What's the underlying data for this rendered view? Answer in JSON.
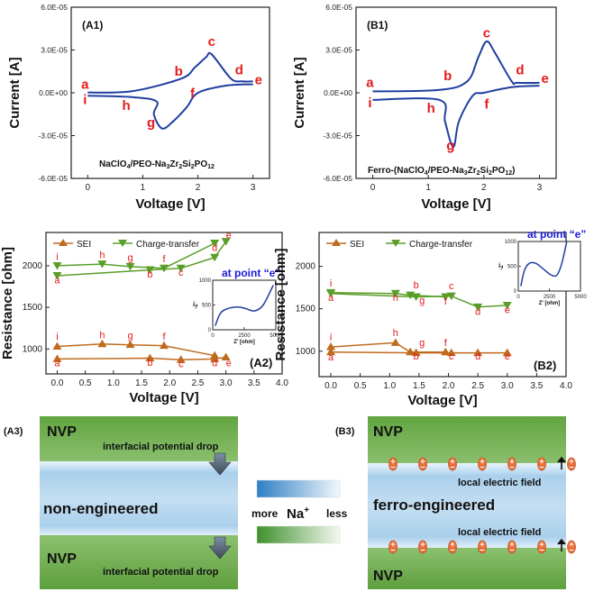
{
  "chart_data": [
    {
      "id": "A1",
      "type": "line",
      "panel_label": "(A1)",
      "inset_label": "NaClO",
      "xlabel": "Voltage [V]",
      "ylabel": "Current [A]",
      "xlim": [
        -0.3,
        3.3
      ],
      "ylim": [
        -6e-05,
        6e-05
      ],
      "xticks": [
        "0",
        "1",
        "2",
        "3"
      ],
      "yticks": [
        "6.0E-05",
        "3.0E-05",
        "0.0E+00",
        "-3.0E-05",
        "-6.0E-05"
      ],
      "forward_scan": {
        "x": [
          0.0,
          0.8,
          1.7,
          1.95,
          2.15,
          2.25,
          2.6,
          2.8,
          3.0
        ],
        "y": [
          2e-07,
          1.1e-06,
          1e-05,
          1.8e-05,
          2.5e-05,
          2.7e-05,
          1e-05,
          8e-06,
          8e-06
        ]
      },
      "reverse_scan": {
        "x": [
          3.0,
          2.5,
          2.0,
          1.8,
          1.55,
          1.35,
          1.2,
          1.25,
          0.8,
          0.0
        ],
        "y": [
          6e-06,
          5e-06,
          0.0,
          -1e-05,
          -2e-05,
          -2.5e-05,
          -1.5e-05,
          -6e-06,
          -3e-06,
          -2e-06
        ]
      },
      "point_labels": [
        {
          "text": "a",
          "x": -0.05,
          "y": 3e-06
        },
        {
          "text": "b",
          "x": 1.65,
          "y": 1.2e-05
        },
        {
          "text": "c",
          "x": 2.25,
          "y": 3.3e-05
        },
        {
          "text": "d",
          "x": 2.75,
          "y": 1.3e-05
        },
        {
          "text": "e",
          "x": 3.1,
          "y": 6e-06
        },
        {
          "text": "f",
          "x": 1.9,
          "y": -3.5e-06
        },
        {
          "text": "g",
          "x": 1.15,
          "y": -2.4e-05
        },
        {
          "text": "h",
          "x": 0.7,
          "y": -1.2e-05
        },
        {
          "text": "i",
          "x": -0.05,
          "y": -8e-06
        }
      ]
    },
    {
      "id": "B1",
      "type": "line",
      "panel_label": "(B1)",
      "inset_label": "Ferro-(NaClO",
      "xlabel": "Voltage [V]",
      "ylabel": "Current [A]",
      "xlim": [
        -0.3,
        3.3
      ],
      "ylim": [
        -6e-05,
        6e-05
      ],
      "xticks": [
        "0",
        "1",
        "2",
        "3"
      ],
      "yticks": [
        "6.0E-05",
        "3.0E-05",
        "0.0E+00",
        "-3.0E-05",
        "-6.0E-05"
      ],
      "forward_scan": {
        "x": [
          0.0,
          1.2,
          1.7,
          1.9,
          2.05,
          2.2,
          2.5,
          2.6,
          3.0
        ],
        "y": [
          1e-06,
          2e-06,
          8e-06,
          2.5e-05,
          3.6e-05,
          2.8e-05,
          8e-06,
          7e-06,
          7e-06
        ]
      },
      "reverse_scan": {
        "x": [
          3.0,
          2.5,
          2.0,
          1.8,
          1.55,
          1.45,
          1.3,
          1.2,
          0.0
        ],
        "y": [
          5e-06,
          4e-06,
          0.0,
          -2e-06,
          -2e-05,
          -3.8e-05,
          -2e-05,
          -5e-06,
          -5e-06
        ]
      },
      "point_labels": [
        {
          "text": "a",
          "x": -0.05,
          "y": 4e-06
        },
        {
          "text": "b",
          "x": 1.35,
          "y": 9e-06
        },
        {
          "text": "c",
          "x": 2.05,
          "y": 3.9e-05
        },
        {
          "text": "d",
          "x": 2.65,
          "y": 1.3e-05
        },
        {
          "text": "e",
          "x": 3.1,
          "y": 7e-06
        },
        {
          "text": "f",
          "x": 2.05,
          "y": -1.1e-05
        },
        {
          "text": "g",
          "x": 1.4,
          "y": -4e-05
        },
        {
          "text": "h",
          "x": 1.05,
          "y": -1.4e-05
        },
        {
          "text": "i",
          "x": -0.05,
          "y": -1e-05
        }
      ]
    },
    {
      "id": "A2",
      "type": "line",
      "panel_label": "(A2)",
      "xlabel": "Voltage [V]",
      "ylabel": "Resistance [ohm]",
      "xlim": [
        -0.2,
        4.0
      ],
      "ylim": [
        700,
        2400
      ],
      "xticks": [
        "0.0",
        "0.5",
        "1.0",
        "1.5",
        "2.0",
        "2.5",
        "3.0",
        "3.5",
        "4.0"
      ],
      "yticks": [
        "1000",
        "1500",
        "2000"
      ],
      "legend": [
        "SEI",
        "Charge-transfer"
      ],
      "series": [
        {
          "name": "SEI (charge)",
          "x": [
            0.0,
            1.65,
            2.2,
            2.8,
            3.0
          ],
          "y": [
            880,
            890,
            870,
            880,
            900
          ]
        },
        {
          "name": "SEI (discharge)",
          "x": [
            0.0,
            0.8,
            1.3,
            1.9,
            2.8
          ],
          "y": [
            1030,
            1060,
            1050,
            1040,
            920
          ]
        },
        {
          "name": "Charge-transfer (charge)",
          "x": [
            0.0,
            1.65,
            2.2,
            2.8,
            3.0
          ],
          "y": [
            1880,
            1950,
            1970,
            2100,
            2290
          ]
        },
        {
          "name": "Charge-transfer (discharge)",
          "x": [
            0.0,
            0.8,
            1.3,
            1.9,
            2.8
          ],
          "y": [
            2000,
            2020,
            1990,
            1970,
            2270
          ]
        }
      ],
      "point_labels": [
        {
          "text": "i",
          "x": 0.0,
          "y": 2070
        },
        {
          "text": "a",
          "x": 0.0,
          "y": 1790
        },
        {
          "text": "h",
          "x": 0.8,
          "y": 2090
        },
        {
          "text": "g",
          "x": 1.3,
          "y": 2060
        },
        {
          "text": "b",
          "x": 1.65,
          "y": 1860
        },
        {
          "text": "f",
          "x": 1.9,
          "y": 2040
        },
        {
          "text": "c",
          "x": 2.2,
          "y": 1880
        },
        {
          "text": "d",
          "x": 2.8,
          "y": 2180
        },
        {
          "text": "e",
          "x": 3.05,
          "y": 2330
        },
        {
          "text": "i",
          "x": 0.0,
          "y": 1110
        },
        {
          "text": "a",
          "x": 0.0,
          "y": 790
        },
        {
          "text": "h",
          "x": 0.8,
          "y": 1130
        },
        {
          "text": "g",
          "x": 1.3,
          "y": 1120
        },
        {
          "text": "b",
          "x": 1.65,
          "y": 800
        },
        {
          "text": "f",
          "x": 1.9,
          "y": 1110
        },
        {
          "text": "c",
          "x": 2.2,
          "y": 780
        },
        {
          "text": "d",
          "x": 2.8,
          "y": 790
        },
        {
          "text": "e",
          "x": 3.05,
          "y": 790
        }
      ],
      "inset": {
        "title": "at point “e”",
        "xlabel": "Z' [ohm]",
        "ylabel": "-Z''",
        "xticks": [
          "0",
          "2500",
          "5000"
        ],
        "yticks": [
          "0",
          "500",
          "1000"
        ],
        "x": [
          200,
          600,
          1200,
          2000,
          2600,
          3300,
          4000,
          4800
        ],
        "y": [
          80,
          330,
          430,
          460,
          430,
          380,
          500,
          900
        ],
        "xlim": [
          0,
          5000
        ],
        "ylim": [
          0,
          1000
        ]
      }
    },
    {
      "id": "B2",
      "type": "line",
      "panel_label": "(B2)",
      "xlabel": "Voltage [V]",
      "ylabel": "Resistance [ohm]",
      "xlim": [
        -0.2,
        4.0
      ],
      "ylim": [
        700,
        2400
      ],
      "xticks": [
        "0.0",
        "0.5",
        "1.0",
        "1.5",
        "2.0",
        "2.5",
        "3.0",
        "3.5",
        "4.0"
      ],
      "yticks": [
        "1000",
        "1500",
        "2000"
      ],
      "legend": [
        "SEI",
        "Charge-transfer"
      ],
      "series": [
        {
          "name": "SEI (charge)",
          "x": [
            0.0,
            1.45,
            2.05,
            2.5,
            3.0
          ],
          "y": [
            990,
            980,
            980,
            980,
            980
          ]
        },
        {
          "name": "SEI (discharge)",
          "x": [
            0.0,
            1.1,
            1.35,
            1.95
          ],
          "y": [
            1050,
            1100,
            990,
            990
          ]
        },
        {
          "name": "Charge-transfer (charge)",
          "x": [
            0.0,
            1.45,
            2.05,
            2.5,
            3.0
          ],
          "y": [
            1680,
            1640,
            1650,
            1520,
            1540
          ]
        },
        {
          "name": "Charge-transfer (discharge)",
          "x": [
            0.0,
            1.1,
            1.35,
            1.95
          ],
          "y": [
            1690,
            1680,
            1660,
            1640
          ]
        }
      ],
      "point_labels": [
        {
          "text": "i",
          "x": 0.0,
          "y": 1760
        },
        {
          "text": "a",
          "x": 0.0,
          "y": 1590
        },
        {
          "text": "h",
          "x": 1.1,
          "y": 1590
        },
        {
          "text": "b",
          "x": 1.45,
          "y": 1740
        },
        {
          "text": "g",
          "x": 1.55,
          "y": 1560
        },
        {
          "text": "c",
          "x": 2.05,
          "y": 1730
        },
        {
          "text": "f",
          "x": 1.95,
          "y": 1550
        },
        {
          "text": "d",
          "x": 2.5,
          "y": 1430
        },
        {
          "text": "e",
          "x": 3.0,
          "y": 1450
        },
        {
          "text": "i",
          "x": 0.0,
          "y": 1130
        },
        {
          "text": "a",
          "x": 0.0,
          "y": 890
        },
        {
          "text": "h",
          "x": 1.1,
          "y": 1180
        },
        {
          "text": "g",
          "x": 1.55,
          "y": 1060
        },
        {
          "text": "b",
          "x": 1.45,
          "y": 900
        },
        {
          "text": "f",
          "x": 1.95,
          "y": 1060
        },
        {
          "text": "c",
          "x": 2.05,
          "y": 900
        },
        {
          "text": "d",
          "x": 2.5,
          "y": 900
        },
        {
          "text": "e",
          "x": 3.0,
          "y": 900
        }
      ],
      "inset": {
        "title": "at point “e”",
        "xlabel": "Z' [ohm]",
        "ylabel": "-Z''",
        "xticks": [
          "0",
          "2500",
          "5000"
        ],
        "yticks": [
          "0",
          "500",
          "1000"
        ],
        "x": [
          200,
          500,
          900,
          1400,
          2000,
          2600,
          3100,
          3500,
          3900
        ],
        "y": [
          100,
          420,
          560,
          560,
          450,
          330,
          320,
          560,
          1000
        ],
        "xlim": [
          0,
          5000
        ],
        "ylim": [
          0,
          1000
        ]
      }
    }
  ],
  "colors": {
    "curve": "#1f3fa0",
    "point_label": "#e31a1c",
    "sei": "#c06a1e",
    "charge_transfer": "#5a9e2a",
    "inset_title": "#1a1adb",
    "nvp_green": "#6cac49",
    "electrolyte_blue": "#bcd9ef"
  },
  "schematic": {
    "a3": {
      "label": "(A3)",
      "nvp_top": "NVP",
      "nvp_bottom": "NVP",
      "center": "non-engineered",
      "drop_top": "interfacial potential drop",
      "drop_bottom": "interfacial potential drop"
    },
    "legend": {
      "more": "more",
      "ion": "Na",
      "ion_charge": "+",
      "less": "less"
    },
    "b3": {
      "label": "(B3)",
      "nvp_top": "NVP",
      "nvp_bottom": "NVP",
      "center": "ferro-engineered",
      "field_top": "local electric field",
      "field_bottom": "local electric field"
    }
  }
}
